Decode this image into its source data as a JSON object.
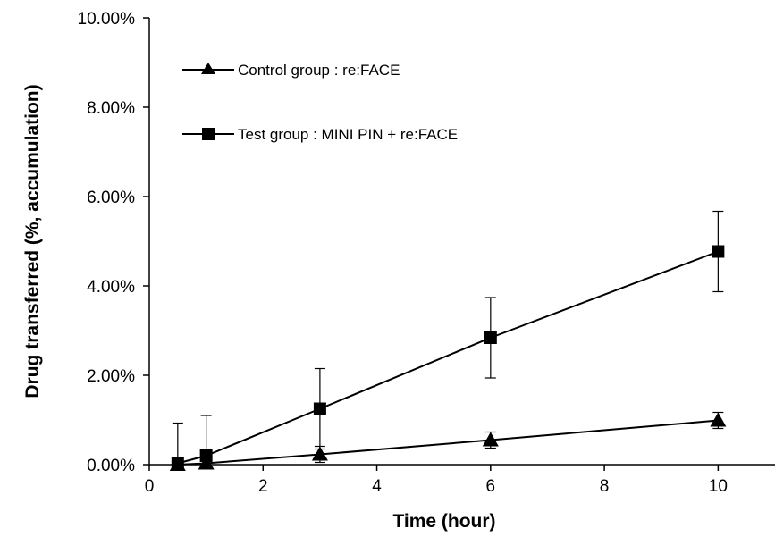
{
  "chart_data": {
    "type": "line",
    "title": "",
    "xlabel": "Time (hour)",
    "ylabel": "Drug transferred (%, accumulation)",
    "xlim": [
      0,
      11
    ],
    "ylim": [
      0,
      0.1
    ],
    "x_ticks": [
      0,
      2,
      4,
      6,
      8,
      10
    ],
    "x_tick_labels": [
      "0",
      "2",
      "4",
      "6",
      "8",
      "10"
    ],
    "y_ticks": [
      0,
      0.02,
      0.04,
      0.06,
      0.08,
      0.1
    ],
    "y_tick_labels": [
      "0.00%",
      "2.00%",
      "4.00%",
      "6.00%",
      "8.00%",
      "10.00%"
    ],
    "grid": false,
    "legend_position": "top-left",
    "series": [
      {
        "name": "Control group : re:FACE",
        "marker": "triangle",
        "color": "#000000",
        "x": [
          0.5,
          1,
          3,
          6,
          10
        ],
        "y": [
          0.0,
          0.0003,
          0.0023,
          0.0055,
          0.0099
        ],
        "error": [
          0.0,
          0.0,
          0.0018,
          0.0018,
          0.0018
        ]
      },
      {
        "name": "Test group : MINI PIN + re:FACE",
        "marker": "square",
        "color": "#000000",
        "x": [
          0.5,
          1,
          3,
          6,
          10
        ],
        "y": [
          0.0003,
          0.002,
          0.0125,
          0.0284,
          0.0477
        ],
        "error": [
          0.009,
          0.009,
          0.009,
          0.009,
          0.009
        ]
      }
    ]
  }
}
